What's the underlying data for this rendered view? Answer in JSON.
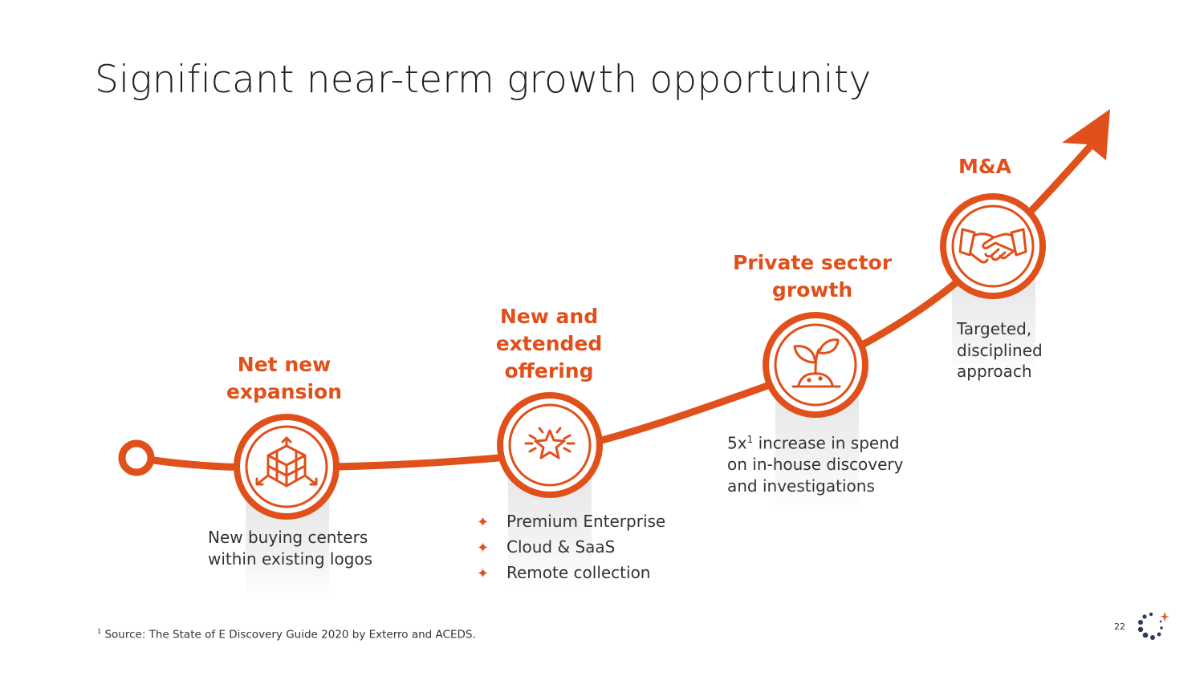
{
  "title": "Significant near-term growth opportunity",
  "stages": [
    {
      "label_lines": [
        "Net new",
        "expansion"
      ],
      "icon": "box-expand-icon",
      "description_lines": [
        "New buying centers",
        "within existing logos"
      ]
    },
    {
      "label_lines": [
        "New and",
        "extended",
        "offering"
      ],
      "icon": "star-burst-icon",
      "bullets": [
        "Premium Enterprise",
        "Cloud & SaaS",
        "Remote collection"
      ]
    },
    {
      "label_lines": [
        "Private sector",
        "growth"
      ],
      "icon": "sprout-icon",
      "description_lines": [
        "increase in spend",
        "on in-house discovery",
        "and investigations"
      ],
      "description_prefix": "5x",
      "description_sup": "1"
    },
    {
      "label_lines": [
        "M&A"
      ],
      "icon": "handshake-icon",
      "description_lines": [
        "Targeted,",
        "disciplined",
        "approach"
      ]
    }
  ],
  "bullet_symbol": "✦",
  "footnote": {
    "sup": "1",
    "text": " Source: The State of E Discovery Guide 2020 by Exterro and ACEDS."
  },
  "page_number": "22",
  "colors": {
    "accent": "#e0501a",
    "text": "#333333"
  },
  "logo_icon": "dotted-circle-logo-icon"
}
